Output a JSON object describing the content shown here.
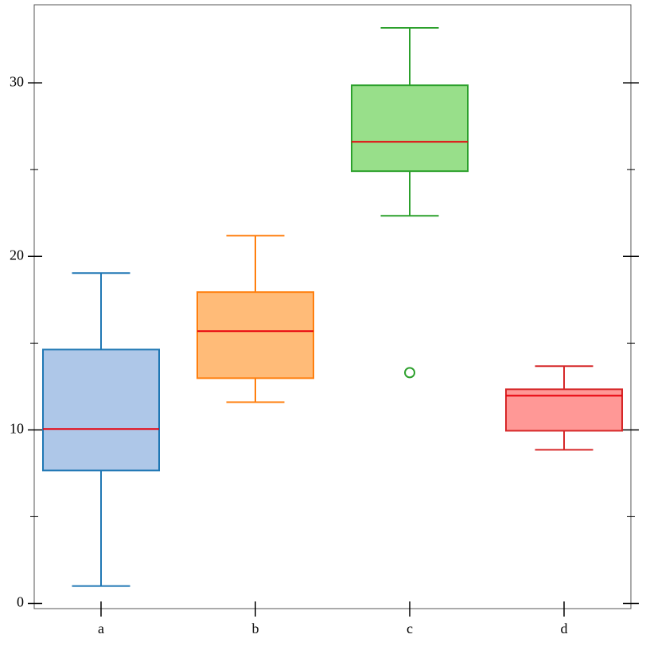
{
  "chart_data": {
    "type": "box",
    "categories": [
      "a",
      "b",
      "c",
      "d"
    ],
    "boxes": [
      {
        "color": "#1f77b4",
        "fill": "#aec7e8",
        "whislo": 1.0,
        "q1": 7.66,
        "med": 10.05,
        "q3": 14.63,
        "whishi": 19.04,
        "fliers": []
      },
      {
        "color": "#ff7f0e",
        "fill": "#ffbb78",
        "whislo": 11.6,
        "q1": 12.98,
        "med": 15.69,
        "q3": 17.94,
        "whishi": 21.19,
        "fliers": []
      },
      {
        "color": "#2ca02c",
        "fill": "#98df8a",
        "whislo": 22.34,
        "q1": 24.91,
        "med": 26.6,
        "q3": 29.86,
        "whishi": 33.17,
        "fliers": [
          13.3
        ]
      },
      {
        "color": "#d62728",
        "fill": "#ff9896",
        "whislo": 8.85,
        "q1": 9.95,
        "med": 11.97,
        "q3": 12.34,
        "whishi": 13.67,
        "fliers": []
      }
    ],
    "median_color": "#e8000b",
    "ylim": [
      -0.3,
      34.5
    ],
    "yticks": [
      0,
      10,
      20,
      30
    ],
    "yminorticks": [
      5,
      15,
      25
    ]
  }
}
